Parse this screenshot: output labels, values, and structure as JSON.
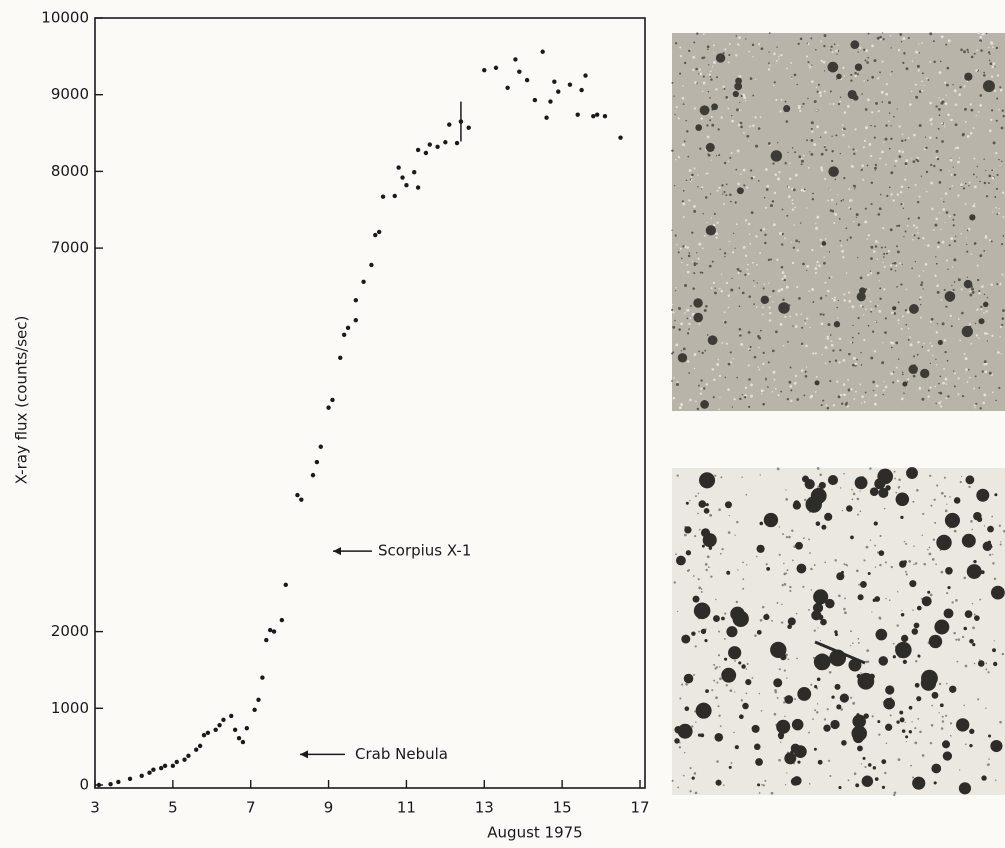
{
  "chart_data": {
    "type": "scatter",
    "x_label": "August 1975",
    "y_label": "X-ray flux (counts/sec)",
    "xlim": [
      3,
      17
    ],
    "xticks": [
      3,
      5,
      7,
      9,
      11,
      13,
      15,
      17
    ],
    "ylim": [
      0,
      10000
    ],
    "yticks": [
      0,
      1000,
      2000,
      7000,
      8000,
      9000,
      10000
    ],
    "color": "#1a1a1a",
    "annotations": [
      {
        "text": "Scorpius X-1",
        "y": 3050
      },
      {
        "text": "Crab Nebula",
        "y": 400
      }
    ],
    "x": [
      3.1,
      3.4,
      3.6,
      3.9,
      4.2,
      4.4,
      4.5,
      4.7,
      4.8,
      5.0,
      5.1,
      5.3,
      5.4,
      5.6,
      5.7,
      5.8,
      5.9,
      6.1,
      6.2,
      6.3,
      6.5,
      6.6,
      6.7,
      6.8,
      6.9,
      7.1,
      7.2,
      7.3,
      7.4,
      7.5,
      7.6,
      7.8,
      7.9,
      8.2,
      8.3,
      8.6,
      8.7,
      8.8,
      9.0,
      9.1,
      9.3,
      9.4,
      9.5,
      9.7,
      9.7,
      9.9,
      10.1,
      10.2,
      10.3,
      10.4,
      10.7,
      10.8,
      10.9,
      11.0,
      11.2,
      11.3,
      11.3,
      11.5,
      11.6,
      11.8,
      12.0,
      12.1,
      12.3,
      12.4,
      12.6,
      13.0,
      13.3,
      13.6,
      13.8,
      13.9,
      14.1,
      14.3,
      14.5,
      14.6,
      14.7,
      14.8,
      14.9,
      15.2,
      15.4,
      15.5,
      15.6,
      15.8,
      15.9,
      16.1,
      16.5
    ],
    "values": [
      0,
      10,
      40,
      80,
      120,
      160,
      200,
      220,
      250,
      250,
      300,
      330,
      380,
      460,
      510,
      650,
      680,
      720,
      780,
      850,
      900,
      720,
      610,
      560,
      740,
      980,
      1110,
      1400,
      1890,
      2020,
      2000,
      2150,
      2610,
      3780,
      3720,
      4040,
      4210,
      4410,
      4920,
      5020,
      5570,
      5870,
      5960,
      6060,
      6320,
      6560,
      6780,
      7170,
      7210,
      7670,
      7680,
      8050,
      7920,
      7820,
      7990,
      7790,
      8280,
      8240,
      8350,
      8320,
      8380,
      8610,
      8370,
      8650,
      8570,
      9320,
      9350,
      9090,
      9460,
      9300,
      9190,
      8930,
      9560,
      8700,
      8910,
      9170,
      9040,
      9130,
      8740,
      9060,
      9250,
      8720,
      8740,
      8720,
      8440
    ],
    "error_bars": [
      {
        "x": 12.4,
        "y": 8650,
        "error": 260
      }
    ]
  }
}
